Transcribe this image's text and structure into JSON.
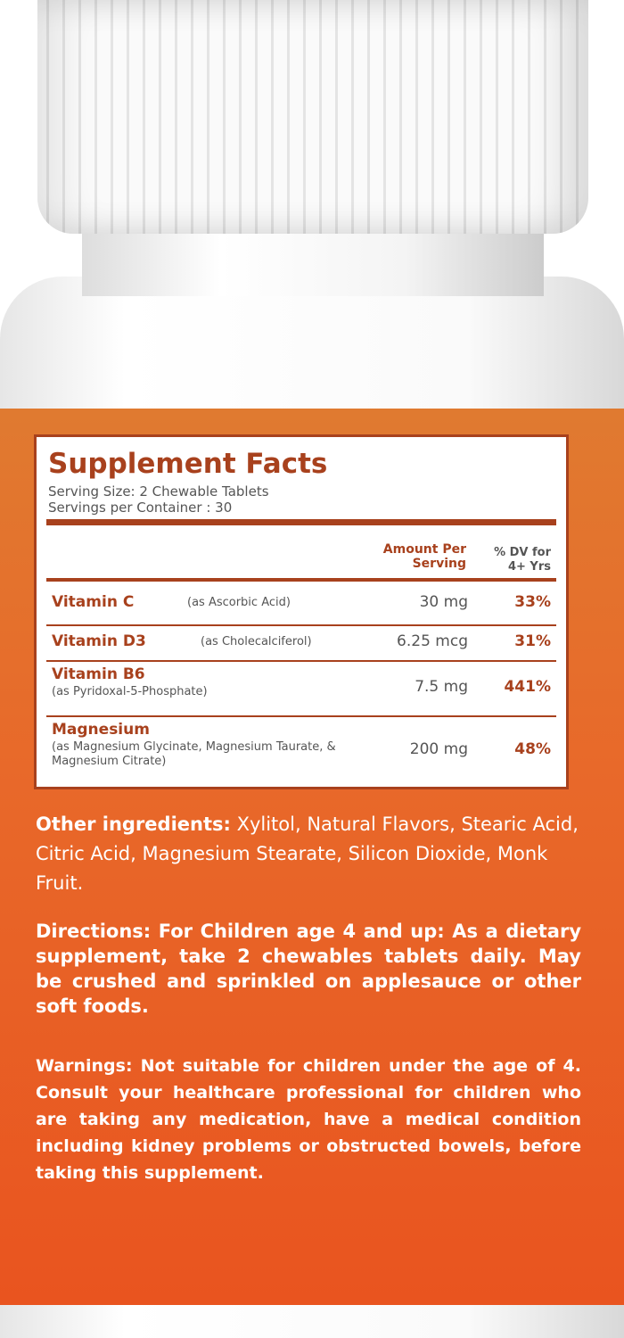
{
  "label": {
    "title": "Supplement Facts",
    "serving_size": "Serving Size: 2 Chewable Tablets",
    "servings_per_container": "Servings per Container : 30",
    "header_amount": "Amount Per Serving",
    "header_dv": "% DV for 4+ Yrs",
    "rows": [
      {
        "name": "Vitamin C",
        "note": "(as Ascorbic Acid)",
        "amount": "30 mg",
        "dv": "33%"
      },
      {
        "name": "Vitamin D3",
        "note": "(as Cholecalciferol)",
        "amount": "6.25 mcg",
        "dv": "31%"
      },
      {
        "name": "Vitamin B6",
        "note": "(as Pyridoxal-5-Phosphate)",
        "amount": "7.5 mg",
        "dv": "441%"
      },
      {
        "name": "Magnesium",
        "note": "(as Magnesium Glycinate, Magnesium Taurate, & Magnesium Citrate)",
        "amount": "200 mg",
        "dv": "48%"
      }
    ],
    "other_ingredients_label": "Other ingredients:",
    "other_ingredients": "Xylitol, Natural Flavors, Stearic Acid, Citric Acid, Magnesium Stearate, Silicon Dioxide, Monk Fruit.",
    "directions_label": "Directions: For Children age 4 and up:",
    "directions": "As a dietary supplement, take 2 chewables tablets daily. May be crushed and sprinkled on applesauce or other soft foods.",
    "warnings_label": "Warnings:",
    "warnings": "Not suitable for children under the age of 4. Consult your healthcare professional for children who are taking any medication, have a medical condition including kidney problems or obstructed bowels, before taking this supplement."
  }
}
